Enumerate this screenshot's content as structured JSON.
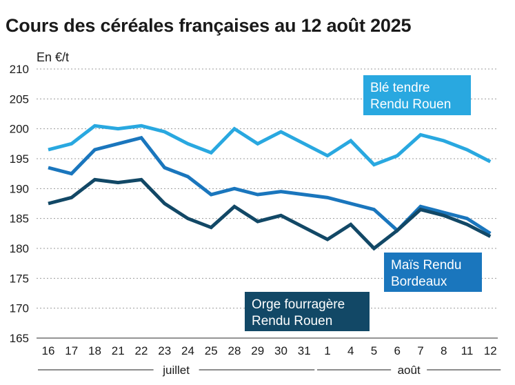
{
  "chart_data": {
    "type": "line",
    "title": "Cours des céréales françaises au 12 août 2025",
    "ylabel": "En €/t",
    "xlabel": "",
    "ylim": [
      165,
      210
    ],
    "yticks": [
      165,
      170,
      175,
      180,
      185,
      190,
      195,
      200,
      205,
      210
    ],
    "grid": true,
    "categories": [
      "16",
      "17",
      "18",
      "21",
      "22",
      "23",
      "24",
      "25",
      "28",
      "29",
      "30",
      "31",
      "1",
      "4",
      "5",
      "6",
      "7",
      "8",
      "11",
      "12"
    ],
    "month_groups": [
      {
        "label": "juillet",
        "start": 0,
        "end": 11
      },
      {
        "label": "août",
        "start": 12,
        "end": 19
      }
    ],
    "series": [
      {
        "name": "Blé tendre Rendu Rouen",
        "legend_lines": [
          "Blé tendre",
          "Rendu Rouen"
        ],
        "color": "#29a8e0",
        "values": [
          196.5,
          197.5,
          200.5,
          200.0,
          200.5,
          199.5,
          197.5,
          196.0,
          200.0,
          197.5,
          199.5,
          197.5,
          195.5,
          198.0,
          194.0,
          195.5,
          199.0,
          198.0,
          196.5,
          194.5
        ]
      },
      {
        "name": "Maïs Rendu Bordeaux",
        "legend_lines": [
          "Maïs Rendu",
          "Bordeaux"
        ],
        "color": "#1a76bd",
        "values": [
          193.5,
          192.5,
          196.5,
          197.5,
          198.5,
          193.5,
          192.0,
          189.0,
          190.0,
          189.0,
          189.5,
          189.0,
          188.5,
          187.5,
          186.5,
          183.0,
          187.0,
          186.0,
          185.0,
          182.5
        ]
      },
      {
        "name": "Orge fourragère Rendu Rouen",
        "legend_lines": [
          "Orge fourragère",
          "Rendu Rouen"
        ],
        "color": "#124866",
        "values": [
          187.5,
          188.5,
          191.5,
          191.0,
          191.5,
          187.5,
          185.0,
          183.5,
          187.0,
          184.5,
          185.5,
          183.5,
          181.5,
          184.0,
          180.0,
          183.0,
          186.5,
          185.5,
          184.0,
          182.0
        ]
      }
    ]
  }
}
